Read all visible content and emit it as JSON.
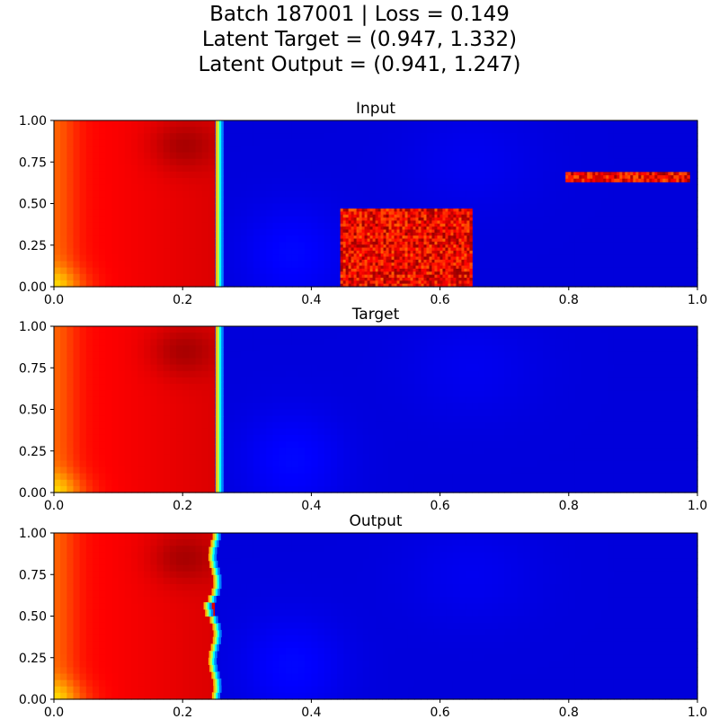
{
  "figure": {
    "suptitle": [
      "Batch 187001  |  Loss = 0.149",
      "Latent Target = (0.947, 1.332)",
      "Latent Output = (0.941, 1.247)"
    ]
  },
  "chart_data": [
    {
      "type": "heatmap",
      "title": "Input",
      "colormap": "jet",
      "xlim": [
        0.0,
        1.0
      ],
      "ylim": [
        0.0,
        1.0
      ],
      "xticks": [
        "0.0",
        "0.2",
        "0.4",
        "0.6",
        "0.8",
        "1.0"
      ],
      "yticks": [
        "0.00",
        "0.25",
        "0.50",
        "0.75",
        "1.00"
      ],
      "front_position": 0.257,
      "hot_region": {
        "x": [
          0.0,
          0.255
        ],
        "y": [
          0.0,
          1.0
        ]
      },
      "noisy_patches": [
        {
          "x": [
            0.445,
            0.65
          ],
          "y": [
            0.0,
            0.47
          ]
        },
        {
          "x": [
            0.795,
            0.988
          ],
          "y": [
            0.63,
            0.69
          ]
        }
      ]
    },
    {
      "type": "heatmap",
      "title": "Target",
      "colormap": "jet",
      "xlim": [
        0.0,
        1.0
      ],
      "ylim": [
        0.0,
        1.0
      ],
      "xticks": [
        "0.0",
        "0.2",
        "0.4",
        "0.6",
        "0.8",
        "1.0"
      ],
      "yticks": [
        "0.00",
        "0.25",
        "0.50",
        "0.75",
        "1.00"
      ],
      "front_position": 0.257,
      "hot_region": {
        "x": [
          0.0,
          0.255
        ],
        "y": [
          0.0,
          1.0
        ]
      }
    },
    {
      "type": "heatmap",
      "title": "Output",
      "colormap": "jet",
      "xlim": [
        0.0,
        1.0
      ],
      "ylim": [
        0.0,
        1.0
      ],
      "xticks": [
        "0.0",
        "0.2",
        "0.4",
        "0.6",
        "0.8",
        "1.0"
      ],
      "yticks": [
        "0.00",
        "0.25",
        "0.50",
        "0.75",
        "1.00"
      ],
      "front_position": 0.25,
      "hot_region": {
        "x": [
          0.0,
          0.25
        ],
        "y": [
          0.0,
          1.0
        ]
      }
    }
  ]
}
